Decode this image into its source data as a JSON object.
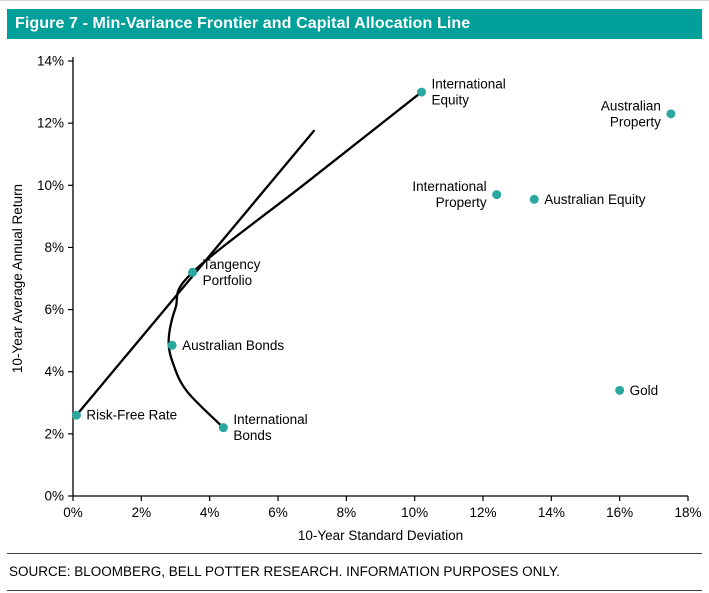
{
  "header": {
    "title": "Figure 7 - Min-Variance Frontier and Capital Allocation Line",
    "bg_color": "#00A09A",
    "text_color": "#FFFFFF"
  },
  "footer": {
    "source": "SOURCE: BLOOMBERG, BELL POTTER RESEARCH. INFORMATION PURPOSES ONLY."
  },
  "chart_data": {
    "type": "scatter",
    "title": "Figure 7 - Min-Variance Frontier and Capital Allocation Line",
    "xlabel": "10-Year Standard Deviation",
    "ylabel": "10-Year Average Annual Return",
    "xlim": [
      0,
      18
    ],
    "ylim": [
      0,
      14
    ],
    "x_ticks": [
      "0%",
      "2%",
      "4%",
      "6%",
      "8%",
      "10%",
      "12%",
      "14%",
      "16%",
      "18%"
    ],
    "y_ticks": [
      "0%",
      "2%",
      "4%",
      "6%",
      "8%",
      "10%",
      "12%",
      "14%"
    ],
    "grid": false,
    "legend": "none",
    "point_color": "#2AA79F",
    "line_color": "#000000",
    "text_color": "#000000",
    "points": [
      {
        "label": "Risk-Free Rate",
        "x": 0.1,
        "y": 2.6,
        "label_side": "right",
        "label_lines": [
          "Risk-Free Rate"
        ]
      },
      {
        "label": "International Bonds",
        "x": 4.4,
        "y": 2.2,
        "label_side": "right",
        "label_lines": [
          "International",
          "Bonds"
        ]
      },
      {
        "label": "Australian Bonds",
        "x": 2.9,
        "y": 4.85,
        "label_side": "right",
        "label_lines": [
          "Australian Bonds"
        ]
      },
      {
        "label": "Tangency Portfolio",
        "x": 3.5,
        "y": 7.2,
        "label_side": "right",
        "label_lines": [
          "Tangency",
          "Portfolio"
        ]
      },
      {
        "label": "International Equity",
        "x": 10.2,
        "y": 13.0,
        "label_side": "right",
        "label_lines": [
          "International",
          "Equity"
        ]
      },
      {
        "label": "Australian Property",
        "x": 17.5,
        "y": 12.3,
        "label_side": "left",
        "label_lines": [
          "Australian",
          "Property"
        ]
      },
      {
        "label": "International Property",
        "x": 12.4,
        "y": 9.7,
        "label_side": "left",
        "label_lines": [
          "International",
          "Property"
        ]
      },
      {
        "label": "Australian Equity",
        "x": 13.5,
        "y": 9.55,
        "label_side": "right",
        "label_lines": [
          "Australian Equity"
        ]
      },
      {
        "label": "Gold",
        "x": 16.0,
        "y": 3.4,
        "label_side": "right",
        "label_lines": [
          "Gold"
        ]
      }
    ],
    "lines": [
      {
        "name": "capital-allocation-line",
        "points": [
          [
            0.1,
            2.6
          ],
          [
            7.05,
            11.75
          ]
        ]
      },
      {
        "name": "min-variance-frontier",
        "points": [
          [
            4.4,
            2.2
          ],
          [
            3.35,
            3.35
          ],
          [
            2.95,
            4.2
          ],
          [
            2.8,
            5.0
          ],
          [
            3.0,
            6.05
          ],
          [
            3.5,
            7.2
          ],
          [
            6.85,
            10.1
          ],
          [
            10.2,
            13.0
          ]
        ]
      }
    ]
  }
}
